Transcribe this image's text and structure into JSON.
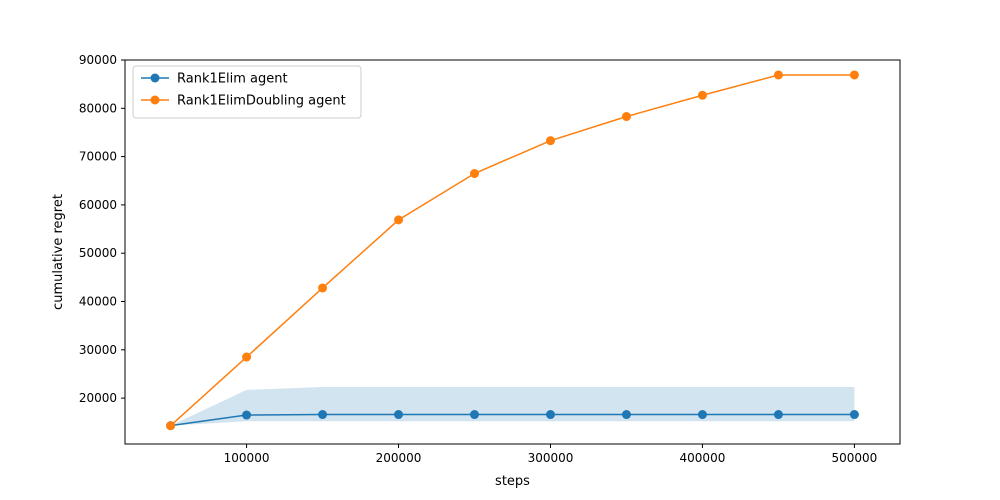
{
  "chart_data": {
    "type": "line",
    "title": "",
    "xlabel": "steps",
    "ylabel": "cumulative regret",
    "xlim": [
      20000,
      530000
    ],
    "ylim": [
      10500,
      90000
    ],
    "x_ticks": [
      100000,
      200000,
      300000,
      400000,
      500000
    ],
    "x_tick_labels": [
      "100000",
      "200000",
      "300000",
      "400000",
      "500000"
    ],
    "y_ticks": [
      20000,
      30000,
      40000,
      50000,
      60000,
      70000,
      80000,
      90000
    ],
    "y_tick_labels": [
      "20000",
      "30000",
      "40000",
      "50000",
      "60000",
      "70000",
      "80000",
      "90000"
    ],
    "grid": false,
    "legend_position": "top-left",
    "x": [
      50000,
      100000,
      150000,
      200000,
      250000,
      300000,
      350000,
      400000,
      450000,
      500000
    ],
    "series": [
      {
        "name": "Rank1Elim agent",
        "color": "#1f77b4",
        "values": [
          14300,
          16500,
          16600,
          16600,
          16600,
          16600,
          16600,
          16600,
          16600,
          16600
        ],
        "band_lower": [
          14300,
          15200,
          15200,
          15200,
          15200,
          15200,
          15200,
          15200,
          15200,
          15200
        ],
        "band_upper": [
          14300,
          21700,
          22300,
          22300,
          22300,
          22300,
          22300,
          22300,
          22300,
          22300
        ]
      },
      {
        "name": "Rank1ElimDoubling agent",
        "color": "#ff7f0e",
        "values": [
          14300,
          28500,
          42800,
          56900,
          66500,
          73300,
          78300,
          82700,
          86900,
          86900
        ]
      }
    ]
  }
}
